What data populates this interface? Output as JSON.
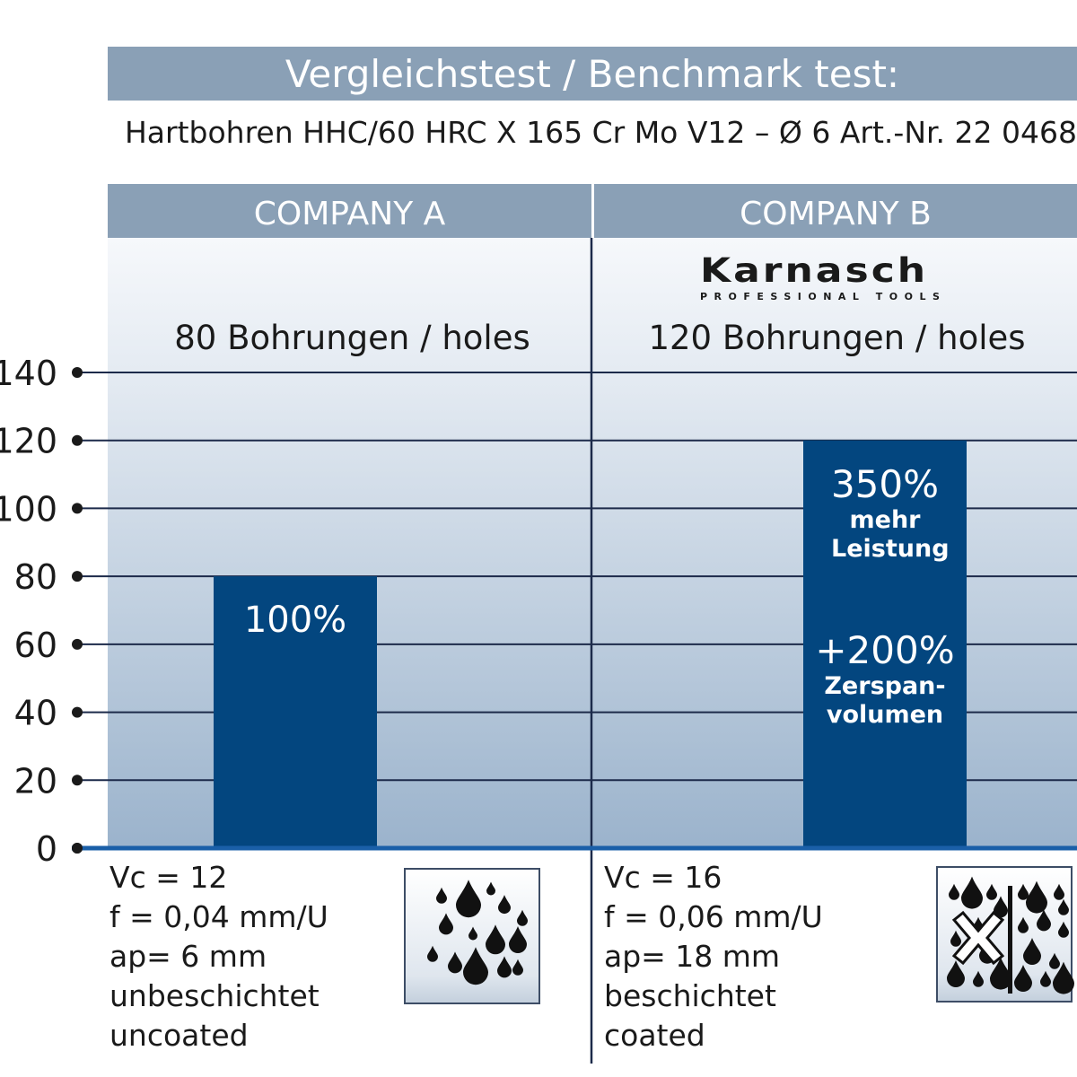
{
  "title": "Vergleichstest / Benchmark test:",
  "subtitle": "Hartbohren HHC/60 HRC X 165 Cr Mo V12 – Ø 6 Art.-Nr. 22 0468",
  "logo": {
    "name": "Karnasch",
    "tagline": "PROFESSIONAL TOOLS"
  },
  "colors": {
    "header": "#8aa0b6",
    "bar": "#03467f",
    "axis": "#1a5fa8",
    "grid": "#1c2a4a"
  },
  "chart_data": {
    "type": "bar",
    "categories": [
      "COMPANY A",
      "COMPANY B"
    ],
    "values": [
      80,
      120
    ],
    "ylim": [
      0,
      140
    ],
    "yticks": [
      0,
      20,
      40,
      60,
      80,
      100,
      120,
      140
    ],
    "grid": true,
    "column_labels": [
      "80 Bohrungen / holes",
      "120 Bohrungen / holes"
    ],
    "bar_labels": [
      {
        "main": "100%"
      },
      {
        "main": "350%",
        "sub": "mehr Leistung",
        "main2": "+200%",
        "sub2a": "Zerspan-",
        "sub2b": "volumen"
      }
    ]
  },
  "params": [
    {
      "lines": [
        "Vc = 12",
        "f = 0,04 mm/U",
        "ap= 6 mm",
        "unbeschichtet",
        "uncoated"
      ],
      "icon": "coolant-drops-icon"
    },
    {
      "lines": [
        "Vc = 16",
        "f = 0,06 mm/U",
        "ap= 18 mm",
        "beschichtet",
        "coated"
      ],
      "icon": "dry-vs-coolant-icon"
    }
  ]
}
